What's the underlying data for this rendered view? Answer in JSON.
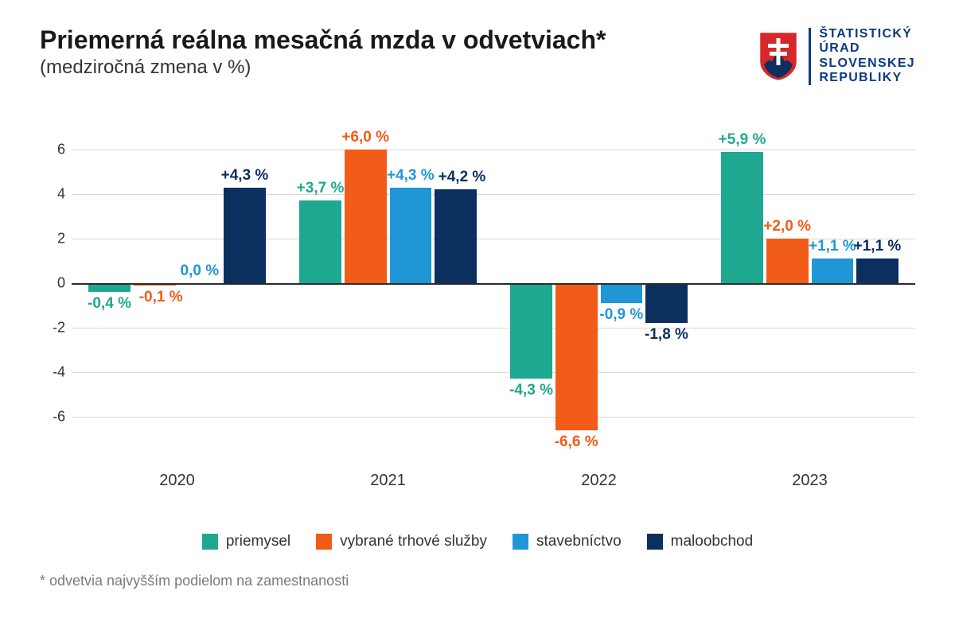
{
  "title": "Priemerná reálna mesačná mzda v odvetviach*",
  "subtitle": "(medziročná zmena v %)",
  "logo": {
    "line1": "ŠTATISTICKÝ",
    "line2": "ÚRAD",
    "line3": "SLOVENSKEJ",
    "line4": "REPUBLIKY",
    "text_color": "#0b3a82",
    "shield_bg": "#d62828",
    "shield_cross": "#ffffff",
    "shield_hill": "#0b3a82"
  },
  "chart": {
    "type": "bar",
    "background_color": "#ffffff",
    "grid_color": "#d9d9d9",
    "axis_color": "#2b2b2b",
    "ymin": -8,
    "ymax": 7,
    "ytick_step": 2,
    "yticks": [
      -6,
      -4,
      -2,
      0,
      2,
      4,
      6
    ],
    "categories": [
      "2020",
      "2021",
      "2022",
      "2023"
    ],
    "series": [
      {
        "key": "priemysel",
        "name": "priemysel",
        "color": "#1fa890"
      },
      {
        "key": "sluzby",
        "name": "vybrané trhové služby",
        "color": "#f25c19"
      },
      {
        "key": "stavebnictvo",
        "name": "stavebníctvo",
        "color": "#2196d6"
      },
      {
        "key": "maloobchod",
        "name": "maloobchod",
        "color": "#0b2f5e"
      }
    ],
    "data": {
      "priemysel": [
        -0.4,
        3.7,
        -4.3,
        5.9
      ],
      "sluzby": [
        -0.1,
        6.0,
        -6.6,
        2.0
      ],
      "stavebnictvo": [
        0.0,
        4.3,
        -0.9,
        1.1
      ],
      "maloobchod": [
        4.3,
        4.2,
        -1.8,
        1.1
      ]
    },
    "bar_width": 0.85,
    "label_fontsize": 19,
    "label_fontweight": "bold",
    "axis_fontsize": 20,
    "label_offsets": {
      "2020": {
        "priemysel": 0,
        "sluzby": 8,
        "stavebnictvo": 0,
        "maloobchod": 0
      },
      "2021": {
        "priemysel": 0,
        "sluzby": 0,
        "stavebnictvo": 0,
        "maloobchod": 8
      },
      "2022": {
        "priemysel": 0,
        "sluzby": 0,
        "stavebnictvo": 0,
        "maloobchod": 0
      },
      "2023": {
        "priemysel": 0,
        "sluzby": 0,
        "stavebnictvo": 0,
        "maloobchod": 0
      }
    }
  },
  "footnote": "* odvetvia najvyšším podielom na zamestnanosti"
}
